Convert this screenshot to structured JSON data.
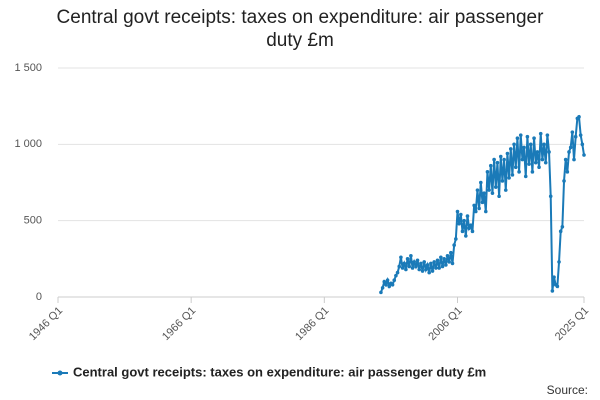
{
  "chart_data": {
    "type": "line",
    "title": "Central govt receipts: taxes on expenditure: air passenger duty £m",
    "source": "Source:",
    "xlim": [
      1946,
      2025
    ],
    "ylim": [
      0,
      1500
    ],
    "xticks": [
      {
        "value": 1946,
        "label": "1946 Q1"
      },
      {
        "value": 1966,
        "label": "1966 Q1"
      },
      {
        "value": 1986,
        "label": "1986 Q1"
      },
      {
        "value": 2006,
        "label": "2006 Q1"
      },
      {
        "value": 2025,
        "label": "2025 Q1"
      }
    ],
    "yticks": [
      0,
      500,
      {
        "value": 1000,
        "label": "1 000"
      },
      {
        "value": 1500,
        "label": "1 500"
      }
    ],
    "grid": true,
    "legend": "bottom",
    "x": [
      1994.5,
      1994.75,
      1995,
      1995.25,
      1995.5,
      1995.75,
      1996,
      1996.25,
      1996.5,
      1996.75,
      1997,
      1997.25,
      1997.5,
      1997.75,
      1998,
      1998.25,
      1998.5,
      1998.75,
      1999,
      1999.25,
      1999.5,
      1999.75,
      2000,
      2000.25,
      2000.5,
      2000.75,
      2001,
      2001.25,
      2001.5,
      2001.75,
      2002,
      2002.25,
      2002.5,
      2002.75,
      2003,
      2003.25,
      2003.5,
      2003.75,
      2004,
      2004.25,
      2004.5,
      2004.75,
      2005,
      2005.25,
      2005.5,
      2005.75,
      2006,
      2006.25,
      2006.5,
      2006.75,
      2007,
      2007.25,
      2007.5,
      2007.75,
      2008,
      2008.25,
      2008.5,
      2008.75,
      2009,
      2009.25,
      2009.5,
      2009.75,
      2010,
      2010.25,
      2010.5,
      2010.75,
      2011,
      2011.25,
      2011.5,
      2011.75,
      2012,
      2012.25,
      2012.5,
      2012.75,
      2013,
      2013.25,
      2013.5,
      2013.75,
      2014,
      2014.25,
      2014.5,
      2014.75,
      2015,
      2015.25,
      2015.5,
      2015.75,
      2016,
      2016.25,
      2016.5,
      2016.75,
      2017,
      2017.25,
      2017.5,
      2017.75,
      2018,
      2018.25,
      2018.5,
      2018.75,
      2019,
      2019.25,
      2019.5,
      2019.75,
      2020,
      2020.25,
      2020.5,
      2020.75,
      2021,
      2021.25,
      2021.5,
      2021.75,
      2022,
      2022.25,
      2022.5,
      2022.75,
      2023,
      2023.25,
      2023.5,
      2023.75,
      2024,
      2024.25,
      2024.5,
      2024.75,
      2025
    ],
    "series": [
      {
        "name": "Central govt receipts: taxes on expenditure: air passenger duty £m",
        "color": "#1a7ab8",
        "values": [
          30,
          60,
          100,
          80,
          110,
          70,
          90,
          80,
          110,
          140,
          160,
          200,
          260,
          190,
          220,
          180,
          250,
          200,
          270,
          190,
          230,
          200,
          240,
          180,
          220,
          170,
          230,
          180,
          210,
          160,
          220,
          170,
          230,
          190,
          240,
          190,
          260,
          200,
          250,
          210,
          270,
          230,
          290,
          220,
          340,
          380,
          560,
          480,
          540,
          430,
          500,
          400,
          530,
          450,
          470,
          430,
          600,
          560,
          700,
          580,
          750,
          620,
          680,
          560,
          820,
          700,
          860,
          680,
          900,
          720,
          880,
          660,
          920,
          760,
          900,
          700,
          940,
          780,
          970,
          800,
          1000,
          850,
          1040,
          820,
          1060,
          900,
          980,
          790,
          1050,
          870,
          1000,
          820,
          1040,
          880,
          950,
          850,
          1070,
          900,
          1000,
          880,
          1060,
          950,
          660,
          40,
          130,
          80,
          70,
          230,
          430,
          460,
          760,
          900,
          820,
          950,
          980,
          1080,
          900,
          1050,
          1170,
          1180,
          1060,
          1000,
          930
        ]
      }
    ]
  }
}
